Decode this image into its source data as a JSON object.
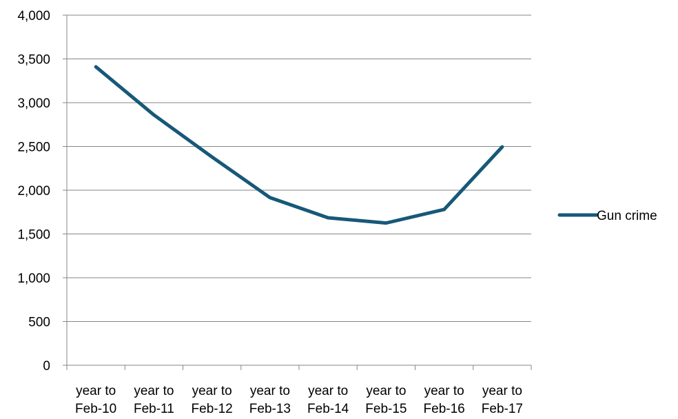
{
  "chart_data": {
    "type": "line",
    "categories": [
      [
        "year to",
        "Feb-10"
      ],
      [
        "year to",
        "Feb-11"
      ],
      [
        "year to",
        "Feb-12"
      ],
      [
        "year to",
        "Feb-13"
      ],
      [
        "year to",
        "Feb-14"
      ],
      [
        "year to",
        "Feb-15"
      ],
      [
        "year to",
        "Feb-16"
      ],
      [
        "year to",
        "Feb-17"
      ]
    ],
    "series": [
      {
        "name": "Gun crime",
        "values": [
          3410,
          2860,
          2380,
          1915,
          1685,
          1625,
          1780,
          2495
        ],
        "color": "#175878"
      }
    ],
    "ylim": [
      0,
      4000
    ],
    "yticks": [
      0,
      500,
      1000,
      1500,
      2000,
      2500,
      3000,
      3500,
      4000
    ],
    "ytick_labels": [
      "0",
      "500",
      "1,000",
      "1,500",
      "2,000",
      "2,500",
      "3,000",
      "3,500",
      "4,000"
    ],
    "grid": true,
    "legend": "right"
  }
}
